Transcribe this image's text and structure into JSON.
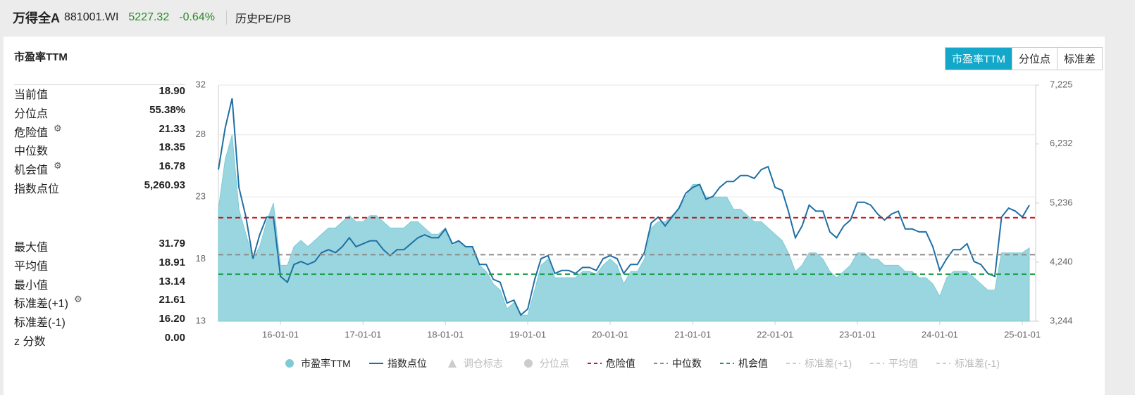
{
  "header": {
    "title": "万得全A",
    "code": "881001.WI",
    "price": "5227.32",
    "change": "-0.64%",
    "link": "历史PE/PB"
  },
  "section_title": "市盈率TTM",
  "tabs": [
    "市盈率TTM",
    "分位点",
    "标准差"
  ],
  "stats": [
    [
      {
        "label": "当前值",
        "value": "18.90"
      },
      {
        "label": "分位点",
        "value": "55.38%"
      },
      {
        "label": "危险值",
        "value": "21.33"
      },
      {
        "label": "中位数",
        "value": "18.35"
      },
      {
        "label": "机会值",
        "value": "16.78"
      },
      {
        "label": "指数点位",
        "value": "5,260.93"
      }
    ],
    [
      {
        "label": "最大值",
        "value": "31.79"
      },
      {
        "label": "平均值",
        "value": "18.91"
      },
      {
        "label": "最小值",
        "value": "13.14"
      },
      {
        "label": "标准差(+1)",
        "value": "21.61"
      },
      {
        "label": "标准差(-1)",
        "value": "16.20"
      },
      {
        "label": "z 分数",
        "value": "0.00"
      }
    ]
  ],
  "chart_data": {
    "type": "line",
    "x": [
      "15-04-01",
      "15-05-01",
      "15-06-01",
      "15-07-01",
      "15-08-01",
      "15-09-01",
      "15-10-01",
      "15-11-01",
      "15-12-01",
      "16-01-01",
      "16-02-01",
      "16-03-01",
      "16-04-01",
      "16-05-01",
      "16-06-01",
      "16-07-01",
      "16-08-01",
      "16-09-01",
      "16-10-01",
      "16-11-01",
      "16-12-01",
      "17-01-01",
      "17-02-01",
      "17-03-01",
      "17-04-01",
      "17-05-01",
      "17-06-01",
      "17-07-01",
      "17-08-01",
      "17-09-01",
      "17-10-01",
      "17-11-01",
      "17-12-01",
      "18-01-01",
      "18-02-01",
      "18-03-01",
      "18-04-01",
      "18-05-01",
      "18-06-01",
      "18-07-01",
      "18-08-01",
      "18-09-01",
      "18-10-01",
      "18-11-01",
      "18-12-01",
      "19-01-01",
      "19-02-01",
      "19-03-01",
      "19-04-01",
      "19-05-01",
      "19-06-01",
      "19-07-01",
      "19-08-01",
      "19-09-01",
      "19-10-01",
      "19-11-01",
      "19-12-01",
      "20-01-01",
      "20-02-01",
      "20-03-01",
      "20-04-01",
      "20-05-01",
      "20-06-01",
      "20-07-01",
      "20-08-01",
      "20-09-01",
      "20-10-01",
      "20-11-01",
      "20-12-01",
      "21-01-01",
      "21-02-01",
      "21-03-01",
      "21-04-01",
      "21-05-01",
      "21-06-01",
      "21-07-01",
      "21-08-01",
      "21-09-01",
      "21-10-01",
      "21-11-01",
      "21-12-01",
      "22-01-01",
      "22-02-01",
      "22-03-01",
      "22-04-01",
      "22-05-01",
      "22-06-01",
      "22-07-01",
      "22-08-01",
      "22-09-01",
      "22-10-01",
      "22-11-01",
      "22-12-01",
      "23-01-01",
      "23-02-01",
      "23-03-01",
      "23-04-01",
      "23-05-01",
      "23-06-01",
      "23-07-01",
      "23-08-01",
      "23-09-01",
      "23-10-01",
      "23-11-01",
      "23-12-01",
      "24-01-01",
      "24-02-01",
      "24-03-01",
      "24-04-01",
      "24-05-01",
      "24-06-01",
      "24-07-01",
      "24-08-01",
      "24-09-01",
      "24-10-01",
      "24-11-01",
      "24-12-01",
      "25-01-01",
      "25-02-01"
    ],
    "xlim": [
      "15-04-01",
      "25-03-01"
    ],
    "xticks": [
      "16-01-01",
      "17-01-01",
      "18-01-01",
      "19-01-01",
      "20-01-01",
      "21-01-01",
      "22-01-01",
      "23-01-01",
      "24-01-01",
      "25-01-01"
    ],
    "ylim": [
      13,
      32
    ],
    "yticks": [
      13,
      18,
      23,
      28,
      32
    ],
    "y2lim": [
      3244,
      7225
    ],
    "y2ticks": [
      {
        "value": 3244,
        "label": "3,244"
      },
      {
        "value": 4240,
        "label": "4,240"
      },
      {
        "value": 5236,
        "label": "5,236"
      },
      {
        "value": 6232,
        "label": "6,232"
      },
      {
        "value": 7225,
        "label": "7,225"
      }
    ],
    "grid": true,
    "series": [
      {
        "name": "市盈率TTM",
        "color": "#7ecbd6",
        "fill": "#9ad6df",
        "values": [
          22,
          26,
          28,
          22,
          20,
          18,
          19,
          21,
          22.5,
          17.5,
          17.5,
          19,
          19.5,
          19,
          19.5,
          20,
          20.5,
          20.5,
          21,
          21.5,
          21,
          21,
          21.5,
          21.5,
          21,
          20.5,
          20.5,
          20.5,
          21,
          21,
          20.5,
          20,
          20,
          20.5,
          19,
          19.5,
          19,
          19,
          17.5,
          17,
          16,
          15.5,
          14,
          14.5,
          13.5,
          13.5,
          15.5,
          17.5,
          18,
          16.5,
          16.5,
          16.5,
          16.5,
          17,
          17,
          16.8,
          17.5,
          18,
          17.5,
          16,
          17,
          17,
          18,
          20.5,
          21,
          21,
          21.5,
          22,
          23,
          24,
          24,
          23,
          23,
          23,
          23,
          22,
          22,
          21.5,
          21,
          21,
          20.5,
          20,
          19.5,
          18.5,
          17,
          17.5,
          18.5,
          18.5,
          18,
          17,
          16.5,
          17,
          17.5,
          18.5,
          18.5,
          18,
          18,
          17.5,
          17.5,
          17.5,
          17,
          17,
          16.5,
          16.5,
          16,
          15,
          16.5,
          17,
          17,
          17,
          16.5,
          16,
          15.5,
          15.5,
          18.5,
          18.5,
          18.5,
          18.5,
          18.9
        ]
      },
      {
        "name": "指数点位",
        "color": "#1f6fa5",
        "axis": "y2",
        "values": [
          5800,
          6500,
          7000,
          5500,
          5000,
          4300,
          4700,
          5000,
          5000,
          4000,
          3900,
          4200,
          4250,
          4200,
          4250,
          4400,
          4450,
          4400,
          4500,
          4650,
          4500,
          4550,
          4600,
          4600,
          4450,
          4350,
          4450,
          4450,
          4550,
          4650,
          4700,
          4650,
          4650,
          4800,
          4550,
          4600,
          4500,
          4500,
          4200,
          4200,
          3950,
          3900,
          3550,
          3600,
          3350,
          3450,
          3950,
          4300,
          4350,
          4050,
          4100,
          4100,
          4050,
          4150,
          4150,
          4100,
          4300,
          4350,
          4300,
          4050,
          4200,
          4200,
          4400,
          4900,
          5000,
          4850,
          5000,
          5150,
          5400,
          5500,
          5550,
          5300,
          5350,
          5500,
          5600,
          5600,
          5700,
          5700,
          5650,
          5800,
          5850,
          5500,
          5450,
          5100,
          4650,
          4850,
          5200,
          5100,
          5100,
          4750,
          4650,
          4850,
          4950,
          5250,
          5250,
          5200,
          5050,
          4950,
          5050,
          5100,
          4800,
          4800,
          4750,
          4750,
          4500,
          4100,
          4300,
          4450,
          4450,
          4550,
          4250,
          4200,
          4050,
          4000,
          5000,
          5150,
          5100,
          5000,
          5200
        ]
      }
    ],
    "reference_lines": [
      {
        "name": "危险值",
        "color": "#c8161d",
        "value": 21.33
      },
      {
        "name": "中位数",
        "color": "#8c8c8c",
        "value": 18.35
      },
      {
        "name": "机会值",
        "color": "#1a9e4a",
        "value": 16.78
      }
    ],
    "inactive_legend": [
      {
        "name": "调仓标志",
        "color": "#cccccc",
        "shape": "triangle"
      },
      {
        "name": "分位点",
        "color": "#cccccc",
        "shape": "circle"
      },
      {
        "name": "标准差(+1)",
        "color": "#cccccc",
        "shape": "dash"
      },
      {
        "name": "平均值",
        "color": "#cccccc",
        "shape": "dash"
      },
      {
        "name": "标准差(-1)",
        "color": "#cccccc",
        "shape": "dash"
      }
    ]
  }
}
